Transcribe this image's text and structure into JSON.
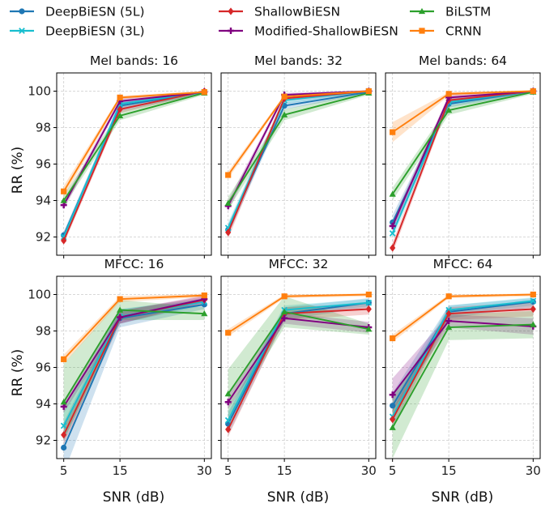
{
  "legend": [
    {
      "name": "DeepBiESN (5L)",
      "color": "#1f77b4",
      "marker": "circle"
    },
    {
      "name": "DeepBiESN (3L)",
      "color": "#17becf",
      "marker": "x"
    },
    {
      "name": "ShallowBiESN",
      "color": "#d62728",
      "marker": "diamond"
    },
    {
      "name": "Modified-ShallowBiESN",
      "color": "#800080",
      "marker": "plus"
    },
    {
      "name": "BiLSTM",
      "color": "#2ca02c",
      "marker": "triangle"
    },
    {
      "name": "CRNN",
      "color": "#ff7f0e",
      "marker": "square"
    }
  ],
  "chart_data": [
    {
      "type": "line",
      "title": "Mel bands: 16",
      "xlabel": "",
      "ylabel": "RR (%)",
      "x": [
        5,
        15,
        30
      ],
      "ylim": [
        91,
        101
      ],
      "yticks": [
        92,
        94,
        96,
        98,
        100
      ],
      "grid": true,
      "series": [
        {
          "name": "DeepBiESN (5L)",
          "values": [
            92.1,
            99.2,
            99.95
          ],
          "band": [
            [
              91.9,
              92.3
            ],
            [
              98.9,
              99.4
            ],
            [
              99.85,
              100.0
            ]
          ]
        },
        {
          "name": "DeepBiESN (3L)",
          "values": [
            92.0,
            99.3,
            99.95
          ],
          "band": [
            [
              91.8,
              92.2
            ],
            [
              99.0,
              99.5
            ],
            [
              99.85,
              100.0
            ]
          ]
        },
        {
          "name": "ShallowBiESN",
          "values": [
            91.8,
            99.0,
            100.0
          ],
          "band": [
            [
              91.6,
              92.0
            ],
            [
              98.8,
              99.2
            ],
            [
              99.9,
              100.05
            ]
          ]
        },
        {
          "name": "Modified-ShallowBiESN",
          "values": [
            93.75,
            99.45,
            99.95
          ],
          "band": [
            [
              93.5,
              94.0
            ],
            [
              99.3,
              99.6
            ],
            [
              99.9,
              100.0
            ]
          ]
        },
        {
          "name": "BiLSTM",
          "values": [
            94.0,
            98.65,
            99.9
          ],
          "band": [
            [
              93.7,
              94.3
            ],
            [
              98.4,
              98.9
            ],
            [
              99.8,
              100.0
            ]
          ]
        },
        {
          "name": "CRNN",
          "values": [
            94.5,
            99.65,
            99.95
          ],
          "band": [
            [
              94.2,
              94.8
            ],
            [
              99.55,
              99.75
            ],
            [
              99.9,
              100.0
            ]
          ]
        }
      ]
    },
    {
      "type": "line",
      "title": "Mel bands: 32",
      "xlabel": "",
      "ylabel": "",
      "x": [
        5,
        15,
        30
      ],
      "ylim": [
        91,
        101
      ],
      "yticks": [
        92,
        94,
        96,
        98,
        100
      ],
      "grid": true,
      "series": [
        {
          "name": "DeepBiESN (5L)",
          "values": [
            92.4,
            99.2,
            99.95
          ],
          "band": [
            [
              92.1,
              92.7
            ],
            [
              99.0,
              99.4
            ],
            [
              99.85,
              100.0
            ]
          ]
        },
        {
          "name": "DeepBiESN (3L)",
          "values": [
            92.5,
            99.5,
            100.0
          ],
          "band": [
            [
              92.2,
              92.8
            ],
            [
              99.3,
              99.7
            ],
            [
              99.9,
              100.05
            ]
          ]
        },
        {
          "name": "ShallowBiESN",
          "values": [
            92.25,
            99.6,
            100.0
          ],
          "band": [
            [
              91.9,
              92.6
            ],
            [
              99.45,
              99.75
            ],
            [
              99.9,
              100.05
            ]
          ]
        },
        {
          "name": "Modified-ShallowBiESN",
          "values": [
            93.7,
            99.8,
            100.0
          ],
          "band": [
            [
              93.4,
              94.0
            ],
            [
              99.7,
              99.9
            ],
            [
              99.9,
              100.05
            ]
          ]
        },
        {
          "name": "BiLSTM",
          "values": [
            93.85,
            98.7,
            99.9
          ],
          "band": [
            [
              93.5,
              94.2
            ],
            [
              98.4,
              99.0
            ],
            [
              99.8,
              100.0
            ]
          ]
        },
        {
          "name": "CRNN",
          "values": [
            95.4,
            99.7,
            100.0
          ],
          "band": [
            [
              95.2,
              95.6
            ],
            [
              99.6,
              99.8
            ],
            [
              99.95,
              100.05
            ]
          ]
        }
      ]
    },
    {
      "type": "line",
      "title": "Mel bands: 64",
      "xlabel": "",
      "ylabel": "",
      "x": [
        5,
        15,
        30
      ],
      "ylim": [
        91,
        101
      ],
      "yticks": [
        92,
        94,
        96,
        98,
        100
      ],
      "grid": true,
      "series": [
        {
          "name": "DeepBiESN (5L)",
          "values": [
            92.8,
            99.3,
            100.0
          ],
          "band": [
            [
              92.4,
              93.2
            ],
            [
              99.1,
              99.5
            ],
            [
              99.9,
              100.05
            ]
          ]
        },
        {
          "name": "DeepBiESN (3L)",
          "values": [
            92.2,
            99.4,
            100.0
          ],
          "band": [
            [
              91.9,
              92.5
            ],
            [
              99.2,
              99.6
            ],
            [
              99.9,
              100.05
            ]
          ]
        },
        {
          "name": "ShallowBiESN",
          "values": [
            91.4,
            99.5,
            100.0
          ],
          "band": [
            [
              91.1,
              91.7
            ],
            [
              99.3,
              99.7
            ],
            [
              99.9,
              100.05
            ]
          ]
        },
        {
          "name": "Modified-ShallowBiESN",
          "values": [
            92.6,
            99.65,
            100.0
          ],
          "band": [
            [
              92.3,
              92.9
            ],
            [
              99.5,
              99.8
            ],
            [
              99.9,
              100.05
            ]
          ]
        },
        {
          "name": "BiLSTM",
          "values": [
            94.35,
            98.95,
            99.95
          ],
          "band": [
            [
              94.0,
              94.7
            ],
            [
              98.7,
              99.2
            ],
            [
              99.85,
              100.05
            ]
          ]
        },
        {
          "name": "CRNN",
          "values": [
            97.75,
            99.85,
            100.0
          ],
          "band": [
            [
              97.2,
              98.3
            ],
            [
              99.75,
              99.95
            ],
            [
              99.95,
              100.05
            ]
          ]
        }
      ]
    },
    {
      "type": "line",
      "title": "MFCC: 16",
      "xlabel": "SNR (dB)",
      "ylabel": "RR (%)",
      "x": [
        5,
        15,
        30
      ],
      "ylim": [
        91,
        101
      ],
      "yticks": [
        92,
        94,
        96,
        98,
        100
      ],
      "grid": true,
      "series": [
        {
          "name": "DeepBiESN (5L)",
          "values": [
            91.6,
            98.7,
            99.45
          ],
          "band": [
            [
              90.2,
              93.0
            ],
            [
              98.2,
              99.2
            ],
            [
              99.2,
              99.7
            ]
          ]
        },
        {
          "name": "DeepBiESN (3L)",
          "values": [
            92.8,
            98.8,
            99.6
          ],
          "band": [
            [
              92.0,
              93.6
            ],
            [
              98.4,
              99.2
            ],
            [
              99.4,
              99.8
            ]
          ]
        },
        {
          "name": "ShallowBiESN",
          "values": [
            92.3,
            98.75,
            99.7
          ],
          "band": [
            [
              91.8,
              92.8
            ],
            [
              98.4,
              99.1
            ],
            [
              99.5,
              99.9
            ]
          ]
        },
        {
          "name": "Modified-ShallowBiESN",
          "values": [
            93.85,
            98.75,
            99.75
          ],
          "band": [
            [
              93.5,
              94.2
            ],
            [
              98.4,
              99.1
            ],
            [
              99.55,
              99.95
            ]
          ]
        },
        {
          "name": "BiLSTM",
          "values": [
            94.1,
            99.15,
            98.95
          ],
          "band": [
            [
              92.0,
              96.2
            ],
            [
              98.6,
              99.7
            ],
            [
              98.6,
              99.3
            ]
          ]
        },
        {
          "name": "CRNN",
          "values": [
            96.45,
            99.75,
            99.95
          ],
          "band": [
            [
              96.2,
              96.7
            ],
            [
              99.6,
              99.9
            ],
            [
              99.85,
              100.05
            ]
          ]
        }
      ]
    },
    {
      "type": "line",
      "title": "MFCC: 32",
      "xlabel": "SNR (dB)",
      "ylabel": "",
      "x": [
        5,
        15,
        30
      ],
      "ylim": [
        91,
        101
      ],
      "yticks": [
        92,
        94,
        96,
        98,
        100
      ],
      "grid": true,
      "series": [
        {
          "name": "DeepBiESN (5L)",
          "values": [
            92.9,
            98.95,
            99.55
          ],
          "band": [
            [
              92.3,
              93.5
            ],
            [
              98.6,
              99.3
            ],
            [
              99.3,
              99.8
            ]
          ]
        },
        {
          "name": "DeepBiESN (3L)",
          "values": [
            93.1,
            99.15,
            99.55
          ],
          "band": [
            [
              92.6,
              93.6
            ],
            [
              98.9,
              99.4
            ],
            [
              99.35,
              99.75
            ]
          ]
        },
        {
          "name": "ShallowBiESN",
          "values": [
            92.6,
            98.95,
            99.2
          ],
          "band": [
            [
              92.2,
              93.0
            ],
            [
              98.6,
              99.3
            ],
            [
              98.9,
              99.5
            ]
          ]
        },
        {
          "name": "Modified-ShallowBiESN",
          "values": [
            94.1,
            98.7,
            98.2
          ],
          "band": [
            [
              93.7,
              94.5
            ],
            [
              98.4,
              99.0
            ],
            [
              97.9,
              98.5
            ]
          ]
        },
        {
          "name": "BiLSTM",
          "values": [
            94.55,
            99.05,
            98.1
          ],
          "band": [
            [
              93.2,
              95.9
            ],
            [
              98.2,
              99.9
            ],
            [
              97.8,
              98.4
            ]
          ]
        },
        {
          "name": "CRNN",
          "values": [
            97.9,
            99.9,
            100.0
          ],
          "band": [
            [
              97.7,
              98.1
            ],
            [
              99.8,
              100.0
            ],
            [
              99.9,
              100.05
            ]
          ]
        }
      ]
    },
    {
      "type": "line",
      "title": "MFCC: 64",
      "xlabel": "SNR (dB)",
      "ylabel": "",
      "x": [
        5,
        15,
        30
      ],
      "ylim": [
        91,
        101
      ],
      "yticks": [
        92,
        94,
        96,
        98,
        100
      ],
      "grid": true,
      "series": [
        {
          "name": "DeepBiESN (5L)",
          "values": [
            93.9,
            99.05,
            99.6
          ],
          "band": [
            [
              93.2,
              94.6
            ],
            [
              98.7,
              99.4
            ],
            [
              99.3,
              99.8
            ]
          ]
        },
        {
          "name": "DeepBiESN (3L)",
          "values": [
            93.3,
            99.15,
            99.65
          ],
          "band": [
            [
              92.6,
              94.0
            ],
            [
              98.9,
              99.4
            ],
            [
              99.4,
              99.85
            ]
          ]
        },
        {
          "name": "ShallowBiESN",
          "values": [
            93.15,
            98.95,
            99.2
          ],
          "band": [
            [
              92.6,
              93.7
            ],
            [
              98.6,
              99.3
            ],
            [
              98.8,
              99.6
            ]
          ]
        },
        {
          "name": "Modified-ShallowBiESN",
          "values": [
            94.5,
            98.55,
            98.25
          ],
          "band": [
            [
              93.6,
              95.4
            ],
            [
              98.2,
              98.9
            ],
            [
              97.8,
              98.7
            ]
          ]
        },
        {
          "name": "BiLSTM",
          "values": [
            92.7,
            98.2,
            98.35
          ],
          "band": [
            [
              91.0,
              94.4
            ],
            [
              97.5,
              98.9
            ],
            [
              97.6,
              99.1
            ]
          ]
        },
        {
          "name": "CRNN",
          "values": [
            97.6,
            99.9,
            100.0
          ],
          "band": [
            [
              97.4,
              97.8
            ],
            [
              99.8,
              100.0
            ],
            [
              99.9,
              100.05
            ]
          ]
        }
      ]
    }
  ]
}
